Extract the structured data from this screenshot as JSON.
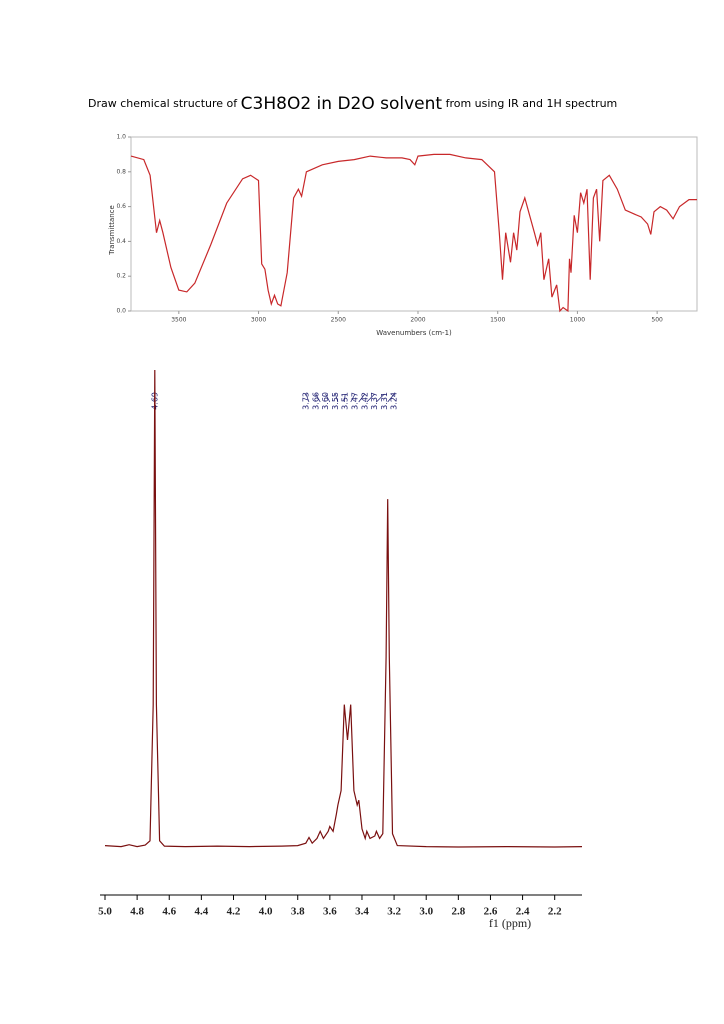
{
  "header": {
    "title_parts": [
      "Draw chemical structure of ",
      "C3H8O2 in D2O solvent",
      " from using IR and 1H spectrum"
    ]
  },
  "chart_data": [
    {
      "type": "line",
      "x_label": "Wavenumbers (cm-1)",
      "y_label": "Transmittance",
      "color": "#c8282a",
      "xlim": [
        3800,
        250
      ],
      "ylim": [
        0,
        1
      ],
      "xticks": [
        3500,
        3000,
        2500,
        2000,
        1500,
        1000,
        500
      ],
      "yticks": [
        {
          "value": 0,
          "label": "0.0"
        },
        0.2,
        0.4,
        0.6,
        0.8,
        {
          "value": 1,
          "label": "1.0"
        }
      ],
      "x": [
        3800,
        3720,
        3680,
        3640,
        3620,
        3600,
        3550,
        3500,
        3450,
        3400,
        3300,
        3200,
        3100,
        3050,
        3000,
        2980,
        2960,
        2940,
        2920,
        2900,
        2880,
        2860,
        2820,
        2780,
        2750,
        2730,
        2700,
        2600,
        2500,
        2400,
        2300,
        2200,
        2100,
        2050,
        2020,
        2000,
        1900,
        1800,
        1700,
        1600,
        1520,
        1490,
        1470,
        1450,
        1420,
        1400,
        1380,
        1360,
        1330,
        1300,
        1270,
        1250,
        1230,
        1210,
        1180,
        1160,
        1130,
        1110,
        1090,
        1060,
        1050,
        1040,
        1020,
        1000,
        980,
        960,
        940,
        920,
        900,
        880,
        860,
        840,
        800,
        750,
        700,
        650,
        600,
        560,
        540,
        520,
        480,
        440,
        400,
        360,
        300,
        250
      ],
      "values": [
        0.89,
        0.87,
        0.78,
        0.45,
        0.52,
        0.45,
        0.25,
        0.12,
        0.11,
        0.16,
        0.38,
        0.62,
        0.76,
        0.78,
        0.75,
        0.27,
        0.24,
        0.12,
        0.04,
        0.09,
        0.04,
        0.03,
        0.22,
        0.65,
        0.7,
        0.66,
        0.8,
        0.84,
        0.86,
        0.87,
        0.89,
        0.88,
        0.88,
        0.87,
        0.84,
        0.89,
        0.9,
        0.9,
        0.88,
        0.87,
        0.8,
        0.45,
        0.18,
        0.45,
        0.28,
        0.45,
        0.35,
        0.57,
        0.65,
        0.55,
        0.45,
        0.38,
        0.45,
        0.18,
        0.3,
        0.08,
        0.15,
        0,
        0.02,
        0,
        0.3,
        0.22,
        0.55,
        0.45,
        0.68,
        0.62,
        0.7,
        0.18,
        0.65,
        0.7,
        0.4,
        0.75,
        0.78,
        0.7,
        0.58,
        0.56,
        0.54,
        0.5,
        0.44,
        0.57,
        0.6,
        0.58,
        0.53,
        0.6,
        0.64,
        0.64
      ]
    },
    {
      "type": "line",
      "x_label": "f1 (ppm)",
      "color": "#7a1010",
      "xlim": [
        5.0,
        2.03
      ],
      "ylim": [
        0,
        100
      ],
      "xticks": [
        {
          "value": 5,
          "label": "5.0"
        },
        4.8,
        4.6,
        4.4,
        4.2,
        {
          "value": 4,
          "label": "4.0"
        },
        3.8,
        3.6,
        3.4,
        3.2,
        {
          "value": 3,
          "label": "3.0"
        },
        2.8,
        2.6,
        2.4,
        2.2
      ],
      "peak_labels": [
        4.69,
        3.73,
        3.66,
        {
          "value": 3.6,
          "label": "3.60"
        },
        3.55,
        3.51,
        3.47,
        3.42,
        3.37,
        3.31,
        3.24
      ],
      "x": [
        5.0,
        4.9,
        4.85,
        4.8,
        4.75,
        4.72,
        4.7,
        4.69,
        4.68,
        4.66,
        4.63,
        4.5,
        4.3,
        4.1,
        3.9,
        3.8,
        3.75,
        3.73,
        3.71,
        3.68,
        3.66,
        3.64,
        3.61,
        3.6,
        3.58,
        3.56,
        3.55,
        3.53,
        3.51,
        3.49,
        3.47,
        3.45,
        3.43,
        3.42,
        3.4,
        3.38,
        3.37,
        3.35,
        3.32,
        3.31,
        3.29,
        3.27,
        3.25,
        3.24,
        3.23,
        3.21,
        3.18,
        3.0,
        2.8,
        2.5,
        2.2,
        2.03
      ],
      "values": [
        0.5,
        0.3,
        0.7,
        0.3,
        0.6,
        1.5,
        30,
        100,
        30,
        1.5,
        0.4,
        0.3,
        0.4,
        0.3,
        0.4,
        0.5,
        1,
        2.2,
        1,
        2,
        3.5,
        2,
        3.5,
        4.5,
        3.5,
        7,
        9,
        12,
        30,
        22.6,
        30,
        12,
        9,
        10,
        4,
        2,
        3.5,
        2,
        2.5,
        3.5,
        2,
        3,
        40,
        73,
        40,
        3,
        0.5,
        0.3,
        0.2,
        0.3,
        0.2,
        0.3
      ]
    }
  ]
}
